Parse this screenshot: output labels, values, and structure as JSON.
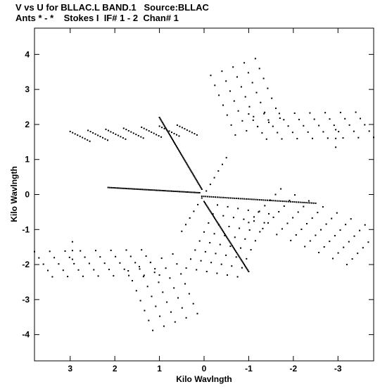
{
  "header": {
    "line1": "V vs U for BLLAC.L BAND.1   Source:BLLAC",
    "line2": "Ants * - *    Stokes I  IF# 1 - 2  Chan# 1"
  },
  "chart_data": {
    "type": "scatter",
    "title": "V vs U for BLLAC.L BAND.1   Source:BLLAC",
    "subtitle": "Ants * - *    Stokes I  IF# 1 - 2  Chan# 1",
    "xlabel": "Kilo Wavlngth",
    "ylabel": "Kilo Wavlngth",
    "xlim": [
      3.8,
      -3.8
    ],
    "ylim": [
      -4.75,
      4.75
    ],
    "x_ticks": [
      3,
      2,
      1,
      0,
      -1,
      -2,
      -3
    ],
    "x_tick_labels": [
      "3",
      "2",
      "1",
      "0",
      "-1",
      "-2",
      "-3"
    ],
    "y_ticks": [
      4,
      3,
      2,
      1,
      0,
      -1,
      -2,
      -3,
      -4
    ],
    "y_tick_labels": [
      "4",
      "3",
      "2",
      "1",
      "0",
      "-1",
      "-2",
      "-3",
      "-4"
    ],
    "grid": false,
    "marker_color": "#000000",
    "arms": [
      {
        "start": [
          3.0,
          1.8
        ],
        "dir": [
          -0.44,
          -0.28
        ],
        "spacing": [
          -0.4,
          0.03
        ],
        "steps": 7,
        "samples": 9
      },
      {
        "start": [
          2.15,
          0.2
        ],
        "dir": [
          -2.05,
          -0.15
        ],
        "spacing": [
          0.05,
          0.05
        ],
        "steps": 1,
        "samples": 60
      },
      {
        "start": [
          1.0,
          2.2
        ],
        "dir": [
          -0.95,
          -2.05
        ],
        "spacing": [
          0.05,
          0.0
        ],
        "steps": 1,
        "samples": 60
      },
      {
        "start": [
          -0.05,
          0.1
        ],
        "dir": [
          -0.45,
          0.95
        ],
        "spacing": [
          0.0,
          0.0
        ],
        "steps": 1,
        "samples": 6
      },
      {
        "start": [
          -0.15,
          3.4
        ],
        "dir": [
          -0.55,
          -1.7
        ],
        "spacing": [
          -0.25,
          0.12
        ],
        "steps": 5,
        "samples": 7
      },
      {
        "start": [
          -1.0,
          2.3
        ],
        "dir": [
          -2.4,
          0.05
        ],
        "spacing": [
          -0.1,
          -0.18
        ],
        "steps": 5,
        "samples": 8
      },
      {
        "start": [
          -2.95,
          1.85
        ],
        "dir": [
          0.0,
          -0.5
        ],
        "spacing": [
          0.0,
          0.0
        ],
        "steps": 1,
        "samples": 3
      },
      {
        "start": [
          -0.3,
          -0.3
        ],
        "dir": [
          0.7,
          -1.8
        ],
        "spacing": [
          -0.23,
          -0.05
        ],
        "steps": 6,
        "samples": 8
      },
      {
        "start": [
          -1.0,
          -0.8
        ],
        "dir": [
          -2.2,
          -1.2
        ],
        "spacing": [
          -0.12,
          0.16
        ],
        "steps": 7,
        "samples": 8
      },
      {
        "start": [
          0.05,
          -0.05
        ],
        "dir": [
          -2.55,
          -0.2
        ],
        "spacing": [
          0.0,
          0.05
        ],
        "steps": 1,
        "samples": 60
      },
      {
        "start": [
          0.0,
          -0.2
        ],
        "dir": [
          -1.0,
          -2.0
        ],
        "spacing": [
          -0.05,
          0.0
        ],
        "steps": 1,
        "samples": 60
      },
      {
        "start": [
          0.05,
          -0.1
        ],
        "dir": [
          0.45,
          -0.95
        ],
        "spacing": [
          0.0,
          0.0
        ],
        "steps": 1,
        "samples": 6
      },
      {
        "start": [
          0.15,
          -3.4
        ],
        "dir": [
          0.55,
          1.7
        ],
        "spacing": [
          0.25,
          -0.12
        ],
        "steps": 5,
        "samples": 7
      },
      {
        "start": [
          1.0,
          -2.3
        ],
        "dir": [
          2.4,
          -0.05
        ],
        "spacing": [
          0.1,
          0.18
        ],
        "steps": 5,
        "samples": 8
      },
      {
        "start": [
          2.95,
          -1.85
        ],
        "dir": [
          0.0,
          0.5
        ],
        "spacing": [
          0.0,
          0.0
        ],
        "steps": 1,
        "samples": 3
      }
    ]
  }
}
